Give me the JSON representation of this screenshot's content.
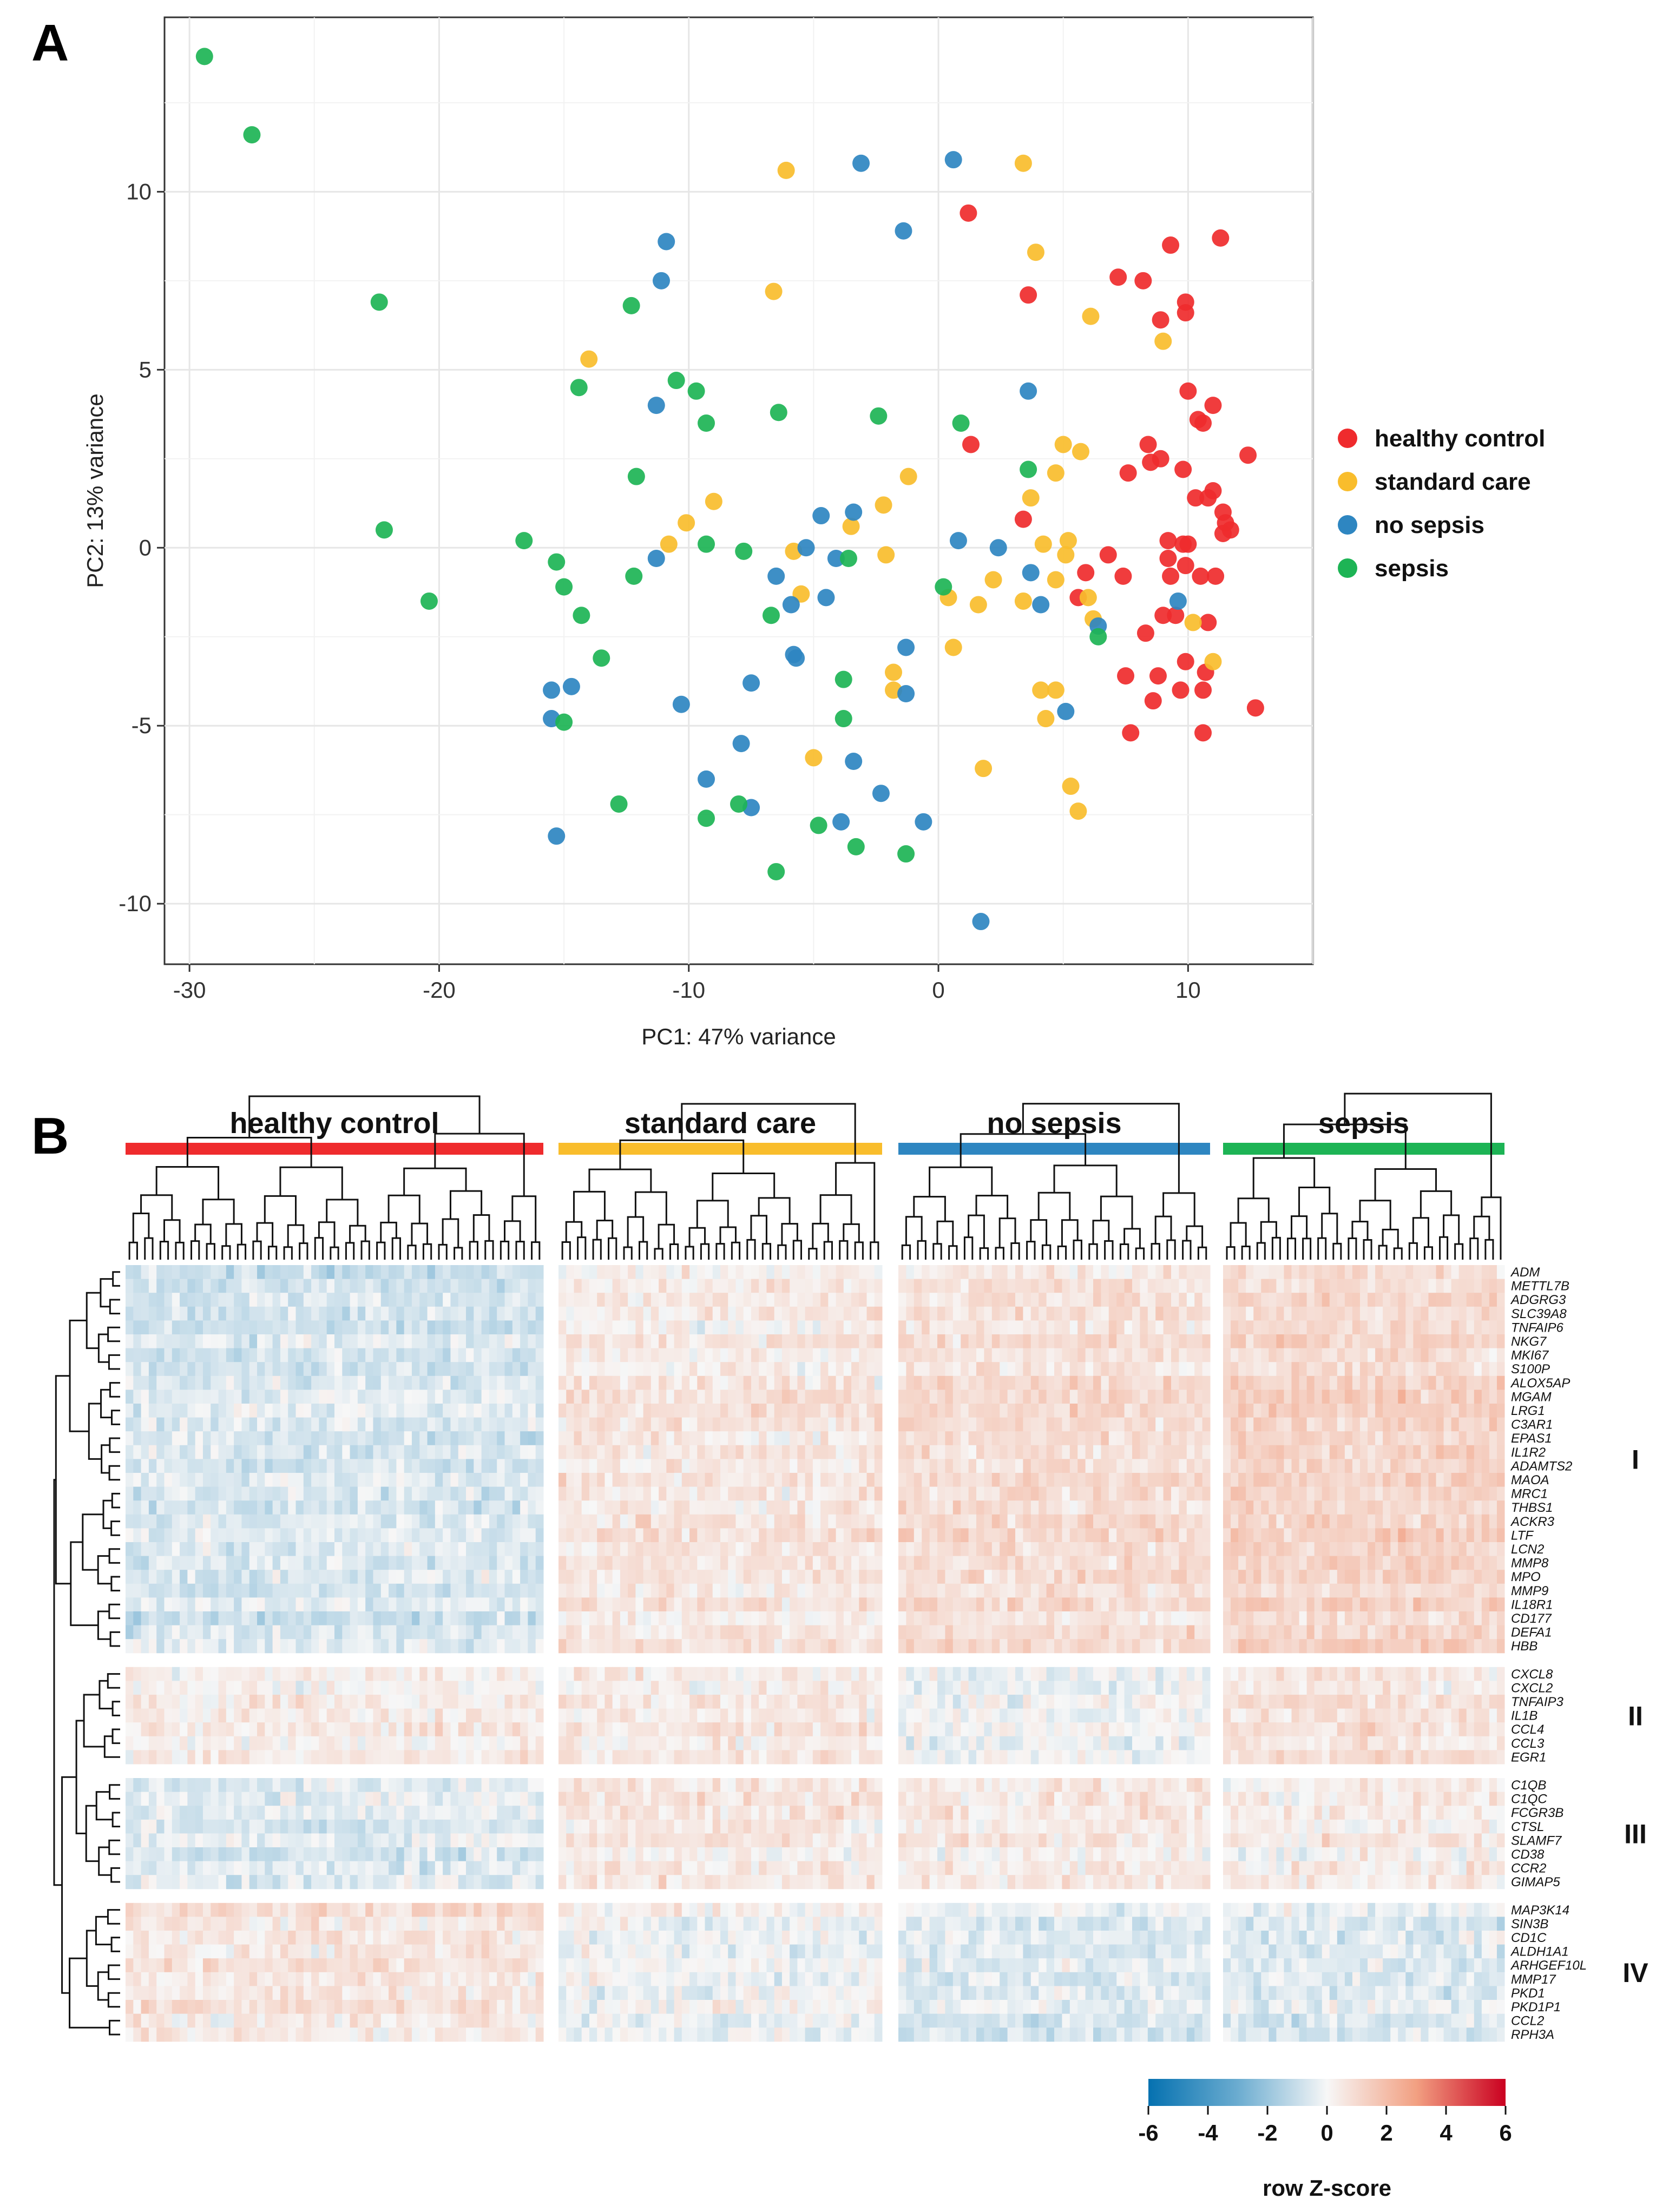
{
  "figure": {
    "panel_a_label": "A",
    "panel_b_label": "B"
  },
  "chart_data": [
    {
      "type": "scatter",
      "panel": "A",
      "xlabel": "PC1: 47% variance",
      "ylabel": "PC2: 13% variance",
      "xlim": [
        -31,
        15
      ],
      "ylim": [
        -11.7,
        14.9
      ],
      "xticks": [
        -30,
        -20,
        -10,
        0,
        10
      ],
      "xtick_labels": [
        "-30",
        "-20",
        "-10",
        "0",
        "10"
      ],
      "yticks": [
        -10,
        -5,
        0,
        5,
        10
      ],
      "ytick_labels": [
        "-10",
        "-5",
        "0",
        "5",
        "10"
      ],
      "grid": true,
      "legend_position": "right",
      "series": [
        {
          "name": "healthy control",
          "color": "#EF2B2D",
          "points": [
            [
              1.2,
              9.4
            ],
            [
              11.3,
              8.7
            ],
            [
              9.3,
              8.5
            ],
            [
              7.2,
              7.6
            ],
            [
              8.2,
              7.5
            ],
            [
              3.6,
              7.1
            ],
            [
              9.9,
              6.9
            ],
            [
              8.9,
              6.4
            ],
            [
              9.9,
              6.6
            ],
            [
              10.0,
              4.4
            ],
            [
              11.0,
              4.0
            ],
            [
              10.6,
              3.5
            ],
            [
              10.4,
              3.6
            ],
            [
              1.3,
              2.9
            ],
            [
              8.4,
              2.9
            ],
            [
              8.9,
              2.5
            ],
            [
              12.4,
              2.6
            ],
            [
              8.5,
              2.4
            ],
            [
              7.6,
              2.1
            ],
            [
              9.8,
              2.2
            ],
            [
              11.0,
              1.6
            ],
            [
              10.3,
              1.4
            ],
            [
              10.8,
              1.4
            ],
            [
              11.4,
              1.0
            ],
            [
              11.5,
              0.7
            ],
            [
              11.7,
              0.5
            ],
            [
              11.4,
              0.4
            ],
            [
              3.4,
              0.8
            ],
            [
              9.2,
              0.2
            ],
            [
              9.8,
              0.1
            ],
            [
              10.0,
              0.1
            ],
            [
              6.8,
              -0.2
            ],
            [
              9.2,
              -0.3
            ],
            [
              9.9,
              -0.5
            ],
            [
              5.9,
              -0.7
            ],
            [
              7.4,
              -0.8
            ],
            [
              9.3,
              -0.8
            ],
            [
              10.5,
              -0.8
            ],
            [
              11.1,
              -0.8
            ],
            [
              5.6,
              -1.4
            ],
            [
              9.0,
              -1.9
            ],
            [
              9.5,
              -1.9
            ],
            [
              10.8,
              -2.1
            ],
            [
              8.3,
              -2.4
            ],
            [
              9.9,
              -3.2
            ],
            [
              7.5,
              -3.6
            ],
            [
              8.8,
              -3.6
            ],
            [
              10.7,
              -3.5
            ],
            [
              10.6,
              -4.0
            ],
            [
              9.7,
              -4.0
            ],
            [
              8.6,
              -4.3
            ],
            [
              12.7,
              -4.5
            ],
            [
              7.7,
              -5.2
            ],
            [
              10.6,
              -5.2
            ]
          ]
        },
        {
          "name": "standard care",
          "color": "#F9BD2C",
          "points": [
            [
              -6.1,
              10.6
            ],
            [
              3.4,
              10.8
            ],
            [
              3.9,
              8.3
            ],
            [
              -6.6,
              7.2
            ],
            [
              6.1,
              6.5
            ],
            [
              9.0,
              5.8
            ],
            [
              -14.0,
              5.3
            ],
            [
              5.0,
              2.9
            ],
            [
              5.7,
              2.7
            ],
            [
              -1.2,
              2.0
            ],
            [
              4.7,
              2.1
            ],
            [
              3.7,
              1.4
            ],
            [
              -9.0,
              1.3
            ],
            [
              -2.2,
              1.2
            ],
            [
              -10.1,
              0.7
            ],
            [
              -3.5,
              0.6
            ],
            [
              -10.8,
              0.1
            ],
            [
              -5.8,
              -0.1
            ],
            [
              -2.1,
              -0.2
            ],
            [
              4.2,
              0.1
            ],
            [
              5.2,
              0.2
            ],
            [
              5.1,
              -0.2
            ],
            [
              2.2,
              -0.9
            ],
            [
              4.7,
              -0.9
            ],
            [
              -5.5,
              -1.3
            ],
            [
              0.4,
              -1.4
            ],
            [
              1.6,
              -1.6
            ],
            [
              3.4,
              -1.5
            ],
            [
              6.0,
              -1.4
            ],
            [
              6.2,
              -2.0
            ],
            [
              10.2,
              -2.1
            ],
            [
              0.6,
              -2.8
            ],
            [
              -1.8,
              -3.5
            ],
            [
              11.0,
              -3.2
            ],
            [
              -1.8,
              -4.0
            ],
            [
              4.1,
              -4.0
            ],
            [
              4.7,
              -4.0
            ],
            [
              4.3,
              -4.8
            ],
            [
              -5.0,
              -5.9
            ],
            [
              1.8,
              -6.2
            ],
            [
              5.3,
              -6.7
            ],
            [
              5.6,
              -7.4
            ]
          ]
        },
        {
          "name": "no sepsis",
          "color": "#2E86C1",
          "points": [
            [
              -3.1,
              10.8
            ],
            [
              0.6,
              10.9
            ],
            [
              -1.4,
              8.9
            ],
            [
              -10.9,
              8.6
            ],
            [
              -11.1,
              7.5
            ],
            [
              3.6,
              4.4
            ],
            [
              -11.3,
              4.0
            ],
            [
              -4.7,
              0.9
            ],
            [
              -3.4,
              1.0
            ],
            [
              -11.3,
              -0.3
            ],
            [
              -5.3,
              0.0
            ],
            [
              0.8,
              0.2
            ],
            [
              2.4,
              0.0
            ],
            [
              -4.1,
              -0.3
            ],
            [
              -6.5,
              -0.8
            ],
            [
              3.7,
              -0.7
            ],
            [
              -4.5,
              -1.4
            ],
            [
              -5.9,
              -1.6
            ],
            [
              4.1,
              -1.6
            ],
            [
              9.6,
              -1.5
            ],
            [
              6.4,
              -2.2
            ],
            [
              -1.3,
              -2.8
            ],
            [
              -5.8,
              -3.0
            ],
            [
              -5.7,
              -3.1
            ],
            [
              -7.5,
              -3.8
            ],
            [
              -1.3,
              -4.1
            ],
            [
              -14.7,
              -3.9
            ],
            [
              -15.5,
              -4.0
            ],
            [
              -10.3,
              -4.4
            ],
            [
              -15.5,
              -4.8
            ],
            [
              5.1,
              -4.6
            ],
            [
              -3.4,
              -6.0
            ],
            [
              -7.9,
              -5.5
            ],
            [
              -9.3,
              -6.5
            ],
            [
              -2.3,
              -6.9
            ],
            [
              -7.5,
              -7.3
            ],
            [
              -3.9,
              -7.7
            ],
            [
              -0.6,
              -7.7
            ],
            [
              -15.3,
              -8.1
            ],
            [
              1.7,
              -10.5
            ]
          ]
        },
        {
          "name": "sepsis",
          "color": "#1DB455",
          "points": [
            [
              -29.4,
              13.8
            ],
            [
              -27.5,
              11.6
            ],
            [
              -22.4,
              6.9
            ],
            [
              -12.3,
              6.8
            ],
            [
              -10.5,
              4.7
            ],
            [
              -9.7,
              4.4
            ],
            [
              -14.4,
              4.5
            ],
            [
              -6.4,
              3.8
            ],
            [
              -2.4,
              3.7
            ],
            [
              -9.3,
              3.5
            ],
            [
              0.9,
              3.5
            ],
            [
              3.6,
              2.2
            ],
            [
              -12.1,
              2.0
            ],
            [
              -22.2,
              0.5
            ],
            [
              -16.6,
              0.2
            ],
            [
              -9.3,
              0.1
            ],
            [
              -7.8,
              -0.1
            ],
            [
              -15.3,
              -0.4
            ],
            [
              -3.6,
              -0.3
            ],
            [
              -15.0,
              -1.1
            ],
            [
              0.2,
              -1.1
            ],
            [
              -20.4,
              -1.5
            ],
            [
              -12.2,
              -0.8
            ],
            [
              -14.3,
              -1.9
            ],
            [
              -6.7,
              -1.9
            ],
            [
              6.4,
              -2.5
            ],
            [
              -13.5,
              -3.1
            ],
            [
              -3.8,
              -3.7
            ],
            [
              -15.0,
              -4.9
            ],
            [
              -3.8,
              -4.8
            ],
            [
              -12.8,
              -7.2
            ],
            [
              -9.3,
              -7.6
            ],
            [
              -8.0,
              -7.2
            ],
            [
              -4.8,
              -7.8
            ],
            [
              -3.3,
              -8.4
            ],
            [
              -1.3,
              -8.6
            ],
            [
              -6.5,
              -9.1
            ]
          ]
        }
      ]
    },
    {
      "type": "heatmap",
      "panel": "B",
      "title": "",
      "value_label": "row Z-score",
      "value_range": [
        -6,
        6
      ],
      "colorbar_ticks": [
        -6,
        -4,
        -2,
        0,
        2,
        4,
        6
      ],
      "colorbar_tick_labels": [
        "-6",
        "-4",
        "-2",
        "0",
        "2",
        "4",
        "6"
      ],
      "colormap": [
        "#0571B0",
        "#F7F7F7",
        "#CA0020"
      ],
      "groups": [
        {
          "name": "healthy control",
          "color": "#EF2B2D",
          "n_samples": 54
        },
        {
          "name": "standard care",
          "color": "#F9BD2C",
          "n_samples": 42
        },
        {
          "name": "no sepsis",
          "color": "#2E86C1",
          "n_samples": 40
        },
        {
          "name": "sepsis",
          "color": "#1DB455",
          "n_samples": 37
        }
      ],
      "clusters": [
        {
          "name": "I",
          "genes": [
            "ADM",
            "METTL7B",
            "ADGRG3",
            "SLC39A8",
            "TNFAIP6",
            "NKG7",
            "MKI67",
            "S100P",
            "ALOX5AP",
            "MGAM",
            "LRG1",
            "C3AR1",
            "EPAS1",
            "IL1R2",
            "ADAMTS2",
            "MAOA",
            "MRC1",
            "THBS1",
            "ACKR3",
            "LTF",
            "LCN2",
            "MMP8",
            "MPO",
            "MMP9",
            "IL18R1",
            "CD177",
            "DEFA1",
            "HBB"
          ],
          "group_means": [
            -0.7,
            0.5,
            0.8,
            1.1
          ]
        },
        {
          "name": "II",
          "genes": [
            "CXCL8",
            "CXCL2",
            "TNFAIP3",
            "IL1B",
            "CCL4",
            "CCL3",
            "EGR1"
          ],
          "group_means": [
            0.3,
            0.4,
            -0.2,
            0.6
          ]
        },
        {
          "name": "III",
          "genes": [
            "C1QB",
            "C1QC",
            "FCGR3B",
            "CTSL",
            "SLAMF7",
            "CD38",
            "CCR2",
            "GIMAP5"
          ],
          "group_means": [
            -0.5,
            0.5,
            0.4,
            0.3
          ]
        },
        {
          "name": "IV",
          "genes": [
            "MAP3K14",
            "SIN3B",
            "CD1C",
            "ALDH1A1",
            "ARHGEF10L",
            "MMP17",
            "PKD1",
            "PKD1P1",
            "CCL2",
            "RPH3A"
          ],
          "group_means": [
            0.7,
            0.0,
            -0.4,
            -0.4
          ]
        }
      ]
    }
  ]
}
